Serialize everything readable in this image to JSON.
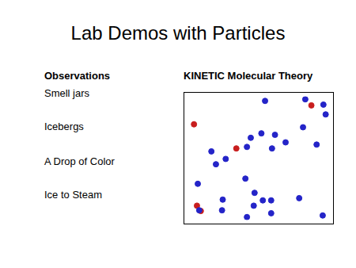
{
  "slide": {
    "title": "Lab Demos with Particles",
    "observations": {
      "heading": "Observations",
      "items": [
        "Smell jars",
        "Icebergs",
        "A Drop of Color",
        "Ice to Steam"
      ]
    },
    "theory": {
      "heading": "KINETIC Molecular Theory"
    }
  },
  "chart_data": {
    "type": "scatter",
    "xlim": [
      0,
      100
    ],
    "ylim": [
      0,
      100
    ],
    "grid": false,
    "tick_labels": false,
    "series": [
      {
        "color": "#2424c8",
        "marker": "circle",
        "x": [
          54.5,
          82.9,
          95.7,
          97.3,
          81.3,
          51.9,
          61.5,
          44.4,
          69.0,
          41.7,
          59.4,
          90.9,
          16.6,
          26.7,
          19.8,
          40.6,
          7.0,
          47.1,
          24.6,
          52.9,
          58.8,
          78.6,
          8.0,
          24.1,
          46.5,
          58.8,
          41.7,
          95.2
        ],
        "values": [
          96.3,
          97.6,
          93.3,
          85.4,
          75.0,
          70.1,
          68.9,
          66.5,
          62.8,
          59.1,
          57.9,
          61.0,
          55.5,
          49.4,
          45.1,
          33.5,
          29.3,
          22.0,
          16.5,
          15.9,
          15.9,
          17.7,
          7.9,
          7.9,
          11.6,
          5.5,
          2.4,
          3.7
        ]
      },
      {
        "color": "#c81e1e",
        "marker": "circle",
        "x": [
          87.2,
          4.3,
          34.2,
          6.4,
          9.1
        ],
        "values": [
          92.7,
          77.4,
          57.9,
          11.6,
          7.3
        ]
      }
    ]
  }
}
